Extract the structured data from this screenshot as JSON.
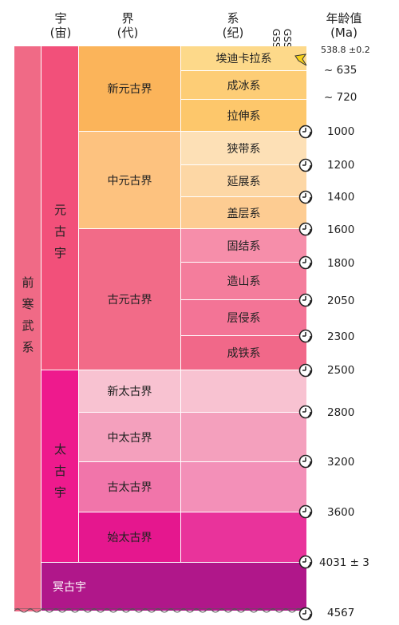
{
  "headers": {
    "eon": "宇",
    "eon_sub": "(宙)",
    "era": "界",
    "era_sub": "(代)",
    "system": "系",
    "system_sub": "(纪)",
    "gssp": "GSSP",
    "gssa": "GSSA",
    "age": "年龄值",
    "age_unit": "(Ma)"
  },
  "supereon": {
    "label_chars": [
      "前",
      "寒",
      "武",
      "系"
    ],
    "color": "#f06a86"
  },
  "eons": [
    {
      "label_chars": [
        "元",
        "古",
        "宇"
      ],
      "color": "#f2507a"
    },
    {
      "label_chars": [
        "太",
        "古",
        "宇"
      ],
      "color": "#ee1a8d"
    },
    {
      "label": "冥古宇",
      "color": "#b0178a"
    }
  ],
  "eras": [
    {
      "label": "新元古界",
      "color": "#fbb45a"
    },
    {
      "label": "中元古界",
      "color": "#fdc27f"
    },
    {
      "label": "古元古界",
      "color": "#f26b88"
    },
    {
      "label": "新太古界",
      "color": "#f8c2d1"
    },
    {
      "label": "中太古界",
      "color": "#f4a0bd"
    },
    {
      "label": "古太古界",
      "color": "#f175aa"
    },
    {
      "label": "始太古界",
      "color": "#e5178e"
    }
  ],
  "systems": [
    {
      "label": "埃迪卡拉系",
      "color": "#fdd98a"
    },
    {
      "label": "成冰系",
      "color": "#fdcd76"
    },
    {
      "label": "拉伸系",
      "color": "#fdc76b"
    },
    {
      "label": "狭带系",
      "color": "#fde0b6"
    },
    {
      "label": "延展系",
      "color": "#fdd7a5"
    },
    {
      "label": "盖层系",
      "color": "#fdcc92"
    },
    {
      "label": "固结系",
      "color": "#f68eaa"
    },
    {
      "label": "造山系",
      "color": "#f47d9c"
    },
    {
      "label": "层侵系",
      "color": "#f37496"
    },
    {
      "label": "成铁系",
      "color": "#f16889"
    }
  ],
  "ages": [
    {
      "label": "538.8 ±0.2"
    },
    {
      "label": "~ 635"
    },
    {
      "label": "~ 720"
    },
    {
      "label": "1000"
    },
    {
      "label": "1200"
    },
    {
      "label": "1400"
    },
    {
      "label": "1600"
    },
    {
      "label": "1800"
    },
    {
      "label": "2050"
    },
    {
      "label": "2300"
    },
    {
      "label": "2500"
    },
    {
      "label": "2800"
    },
    {
      "label": "3200"
    },
    {
      "label": "3600"
    },
    {
      "label": "4031 ± 3"
    },
    {
      "label": "4567"
    }
  ]
}
